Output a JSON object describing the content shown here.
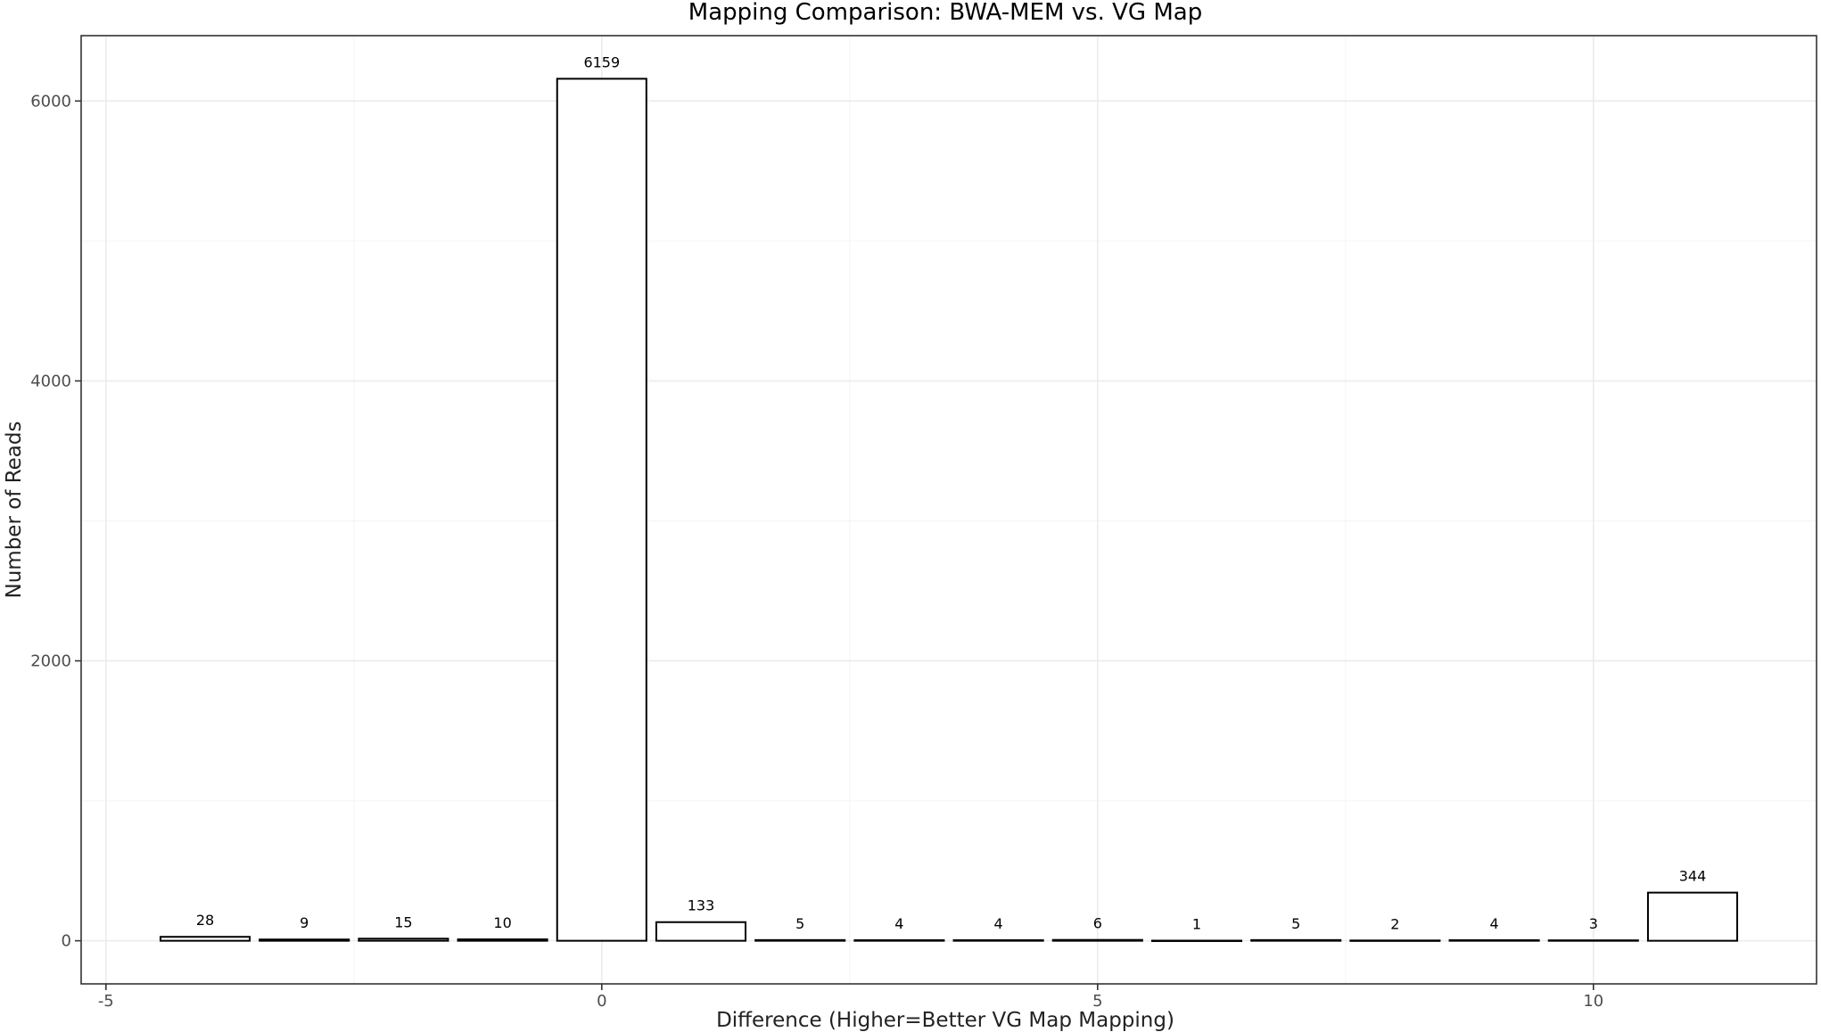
{
  "chart_data": {
    "type": "bar",
    "title": "Mapping Comparison: BWA-MEM vs. VG Map",
    "xlabel": "Difference (Higher=Better VG Map Mapping)",
    "ylabel": "Number of Reads",
    "x": [
      -4,
      -3,
      -2,
      -1,
      0,
      1,
      2,
      3,
      4,
      5,
      6,
      7,
      8,
      9,
      10,
      11
    ],
    "values": [
      28,
      9,
      15,
      10,
      6159,
      133,
      5,
      4,
      4,
      6,
      1,
      5,
      2,
      4,
      3,
      344
    ],
    "data_labels": [
      "28",
      "9",
      "15",
      "10",
      "6159",
      "133",
      "5",
      "4",
      "4",
      "6",
      "1",
      "5",
      "2",
      "4",
      "3",
      "344"
    ],
    "xlim": [
      -5.25,
      12.25
    ],
    "ylim": [
      -308,
      6467
    ],
    "x_ticks": [
      -5,
      0,
      5,
      10
    ],
    "x_tick_labels": [
      "-5",
      "0",
      "5",
      "10"
    ],
    "y_ticks": [
      0,
      2000,
      4000,
      6000
    ],
    "y_tick_labels": [
      "0",
      "2000",
      "4000",
      "6000"
    ],
    "bar_fill": "#ffffff",
    "bar_outline": "#000000",
    "grid": true,
    "legend": "none"
  }
}
